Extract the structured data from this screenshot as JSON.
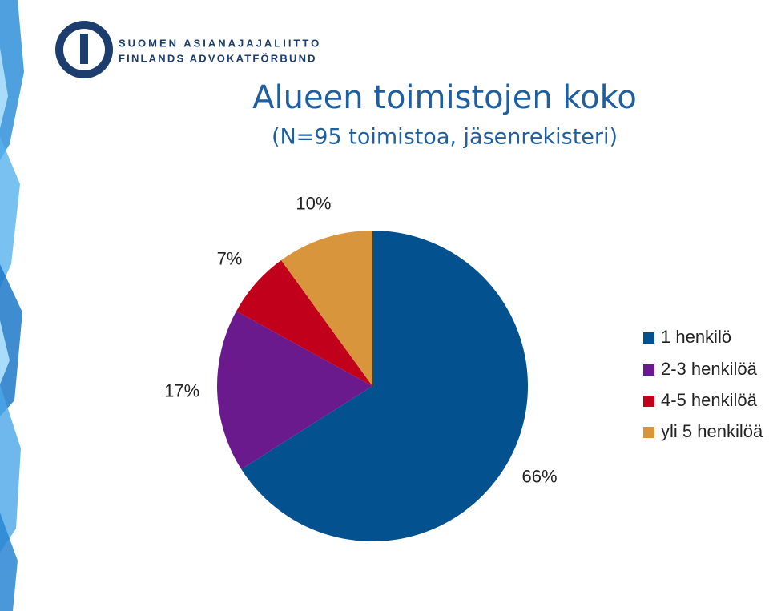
{
  "logo": {
    "line1": "SUOMEN ASIANAJAJALIITTO",
    "line2": "FINLANDS ADVOKATFÖRBUND"
  },
  "chart_data": {
    "type": "pie",
    "title": "Alueen toimistojen koko",
    "subtitle": "(N=95 toimistoa, jäsenrekisteri)",
    "categories": [
      "1 henkilö",
      "2-3 henkilöä",
      "4-5 henkilöä",
      "yli 5 henkilöä"
    ],
    "values": [
      66,
      17,
      7,
      10
    ],
    "value_labels": [
      "66%",
      "17%",
      "7%",
      "10%"
    ],
    "colors": [
      "#03528f",
      "#6b1a8d",
      "#c1001b",
      "#d8953b"
    ],
    "legend": "right"
  }
}
